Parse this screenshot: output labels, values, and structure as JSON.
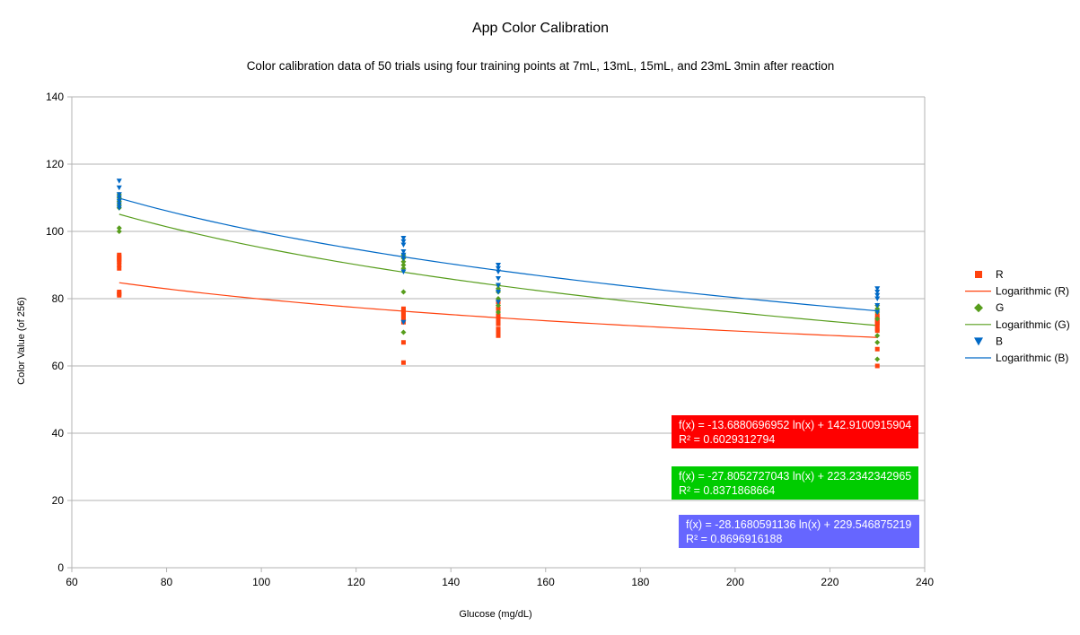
{
  "chart_data": {
    "type": "scatter",
    "title": "App Color Calibration",
    "subtitle": "Color calibration data of 50 trials using four training points at 7mL, 13mL, 15mL, and 23mL 3min after reaction",
    "xlabel": "Glucose (mg/dL)",
    "ylabel": "Color Value (of 256)",
    "xlim": [
      60,
      240
    ],
    "ylim": [
      0,
      140
    ],
    "xticks": [
      60,
      80,
      100,
      120,
      140,
      160,
      180,
      200,
      220,
      240
    ],
    "yticks": [
      0,
      20,
      40,
      60,
      80,
      100,
      120,
      140
    ],
    "grid": "horizontal",
    "legend_position": "right",
    "series": [
      {
        "name": "R",
        "marker": "square",
        "color": "#ff420e",
        "points": [
          [
            70,
            81
          ],
          [
            70,
            81.5
          ],
          [
            70,
            82
          ],
          [
            70,
            89
          ],
          [
            70,
            90
          ],
          [
            70,
            91
          ],
          [
            70,
            91.5
          ],
          [
            70,
            92
          ],
          [
            70,
            92.5
          ],
          [
            70,
            93
          ],
          [
            130,
            61
          ],
          [
            130,
            67
          ],
          [
            130,
            73
          ],
          [
            130,
            74
          ],
          [
            130,
            74.5
          ],
          [
            130,
            75
          ],
          [
            130,
            75.5
          ],
          [
            130,
            76
          ],
          [
            130,
            76.5
          ],
          [
            130,
            77
          ],
          [
            150,
            69
          ],
          [
            150,
            70
          ],
          [
            150,
            71
          ],
          [
            150,
            72.5
          ],
          [
            150,
            73
          ],
          [
            150,
            73.5
          ],
          [
            150,
            74
          ],
          [
            150,
            75
          ],
          [
            150,
            77
          ],
          [
            150,
            79
          ],
          [
            230,
            60
          ],
          [
            230,
            65
          ],
          [
            230,
            70.5
          ],
          [
            230,
            71
          ],
          [
            230,
            72
          ],
          [
            230,
            72.5
          ],
          [
            230,
            73
          ],
          [
            230,
            73.5
          ],
          [
            230,
            74
          ],
          [
            230,
            75
          ]
        ]
      },
      {
        "name": "G",
        "marker": "diamond",
        "color": "#579d1c",
        "points": [
          [
            70,
            100
          ],
          [
            70,
            101
          ],
          [
            70,
            107
          ],
          [
            70,
            108
          ],
          [
            70,
            109
          ],
          [
            70,
            110
          ],
          [
            70,
            111
          ],
          [
            130,
            70
          ],
          [
            130,
            82
          ],
          [
            130,
            89
          ],
          [
            130,
            90
          ],
          [
            130,
            91
          ],
          [
            130,
            92
          ],
          [
            130,
            93
          ],
          [
            150,
            76
          ],
          [
            150,
            78
          ],
          [
            150,
            80
          ],
          [
            150,
            82
          ],
          [
            150,
            83
          ],
          [
            150,
            84
          ],
          [
            230,
            62
          ],
          [
            230,
            67
          ],
          [
            230,
            69
          ],
          [
            230,
            74
          ],
          [
            230,
            76
          ],
          [
            230,
            77
          ],
          [
            230,
            78
          ]
        ]
      },
      {
        "name": "B",
        "marker": "triangle-down",
        "color": "#0069c6",
        "points": [
          [
            70,
            107
          ],
          [
            70,
            108
          ],
          [
            70,
            109
          ],
          [
            70,
            110
          ],
          [
            70,
            111
          ],
          [
            70,
            113
          ],
          [
            70,
            115
          ],
          [
            130,
            73
          ],
          [
            130,
            88
          ],
          [
            130,
            92
          ],
          [
            130,
            93
          ],
          [
            130,
            94
          ],
          [
            130,
            96
          ],
          [
            130,
            97
          ],
          [
            130,
            98
          ],
          [
            150,
            79
          ],
          [
            150,
            82
          ],
          [
            150,
            84
          ],
          [
            150,
            86
          ],
          [
            150,
            88
          ],
          [
            150,
            89
          ],
          [
            150,
            90
          ],
          [
            230,
            76
          ],
          [
            230,
            78
          ],
          [
            230,
            80
          ],
          [
            230,
            81
          ],
          [
            230,
            82
          ],
          [
            230,
            83
          ]
        ]
      }
    ],
    "trendlines": [
      {
        "name": "Logarithmic (R)",
        "color": "#ff420e",
        "a": -13.6880696952,
        "b": 142.9100915904,
        "x_range": [
          70,
          230
        ]
      },
      {
        "name": "Logarithmic (G)",
        "color": "#579d1c",
        "a": -27.8052727043,
        "b": 223.2342342965,
        "x_range": [
          70,
          230
        ]
      },
      {
        "name": "Logarithmic (B)",
        "color": "#0069c6",
        "a": -28.1680591136,
        "b": 229.546875219,
        "x_range": [
          70,
          230
        ]
      }
    ],
    "legend": [
      {
        "label": "R",
        "kind": "marker",
        "marker": "square",
        "color": "#ff420e"
      },
      {
        "label": "Logarithmic (R)",
        "kind": "line",
        "color": "#ff420e"
      },
      {
        "label": "G",
        "kind": "marker",
        "marker": "diamond",
        "color": "#579d1c"
      },
      {
        "label": "Logarithmic (G)",
        "kind": "line",
        "color": "#579d1c"
      },
      {
        "label": "B",
        "kind": "marker",
        "marker": "triangle-down",
        "color": "#0069c6"
      },
      {
        "label": "Logarithmic (B)",
        "kind": "line",
        "color": "#0069c6"
      }
    ],
    "equations": [
      {
        "line1": "f(x) = -13.6880696952 ln(x) + 142.9100915904",
        "line2": "R² = 0.6029312794",
        "background": "#ff0000"
      },
      {
        "line1": "f(x) = -27.8052727043 ln(x) + 223.2342342965",
        "line2": "R² = 0.8371868664",
        "background": "#00cc00"
      },
      {
        "line1": "f(x) = -28.1680591136 ln(x) + 229.546875219",
        "line2": "R² = 0.8696916188",
        "background": "#6666ff"
      }
    ]
  }
}
